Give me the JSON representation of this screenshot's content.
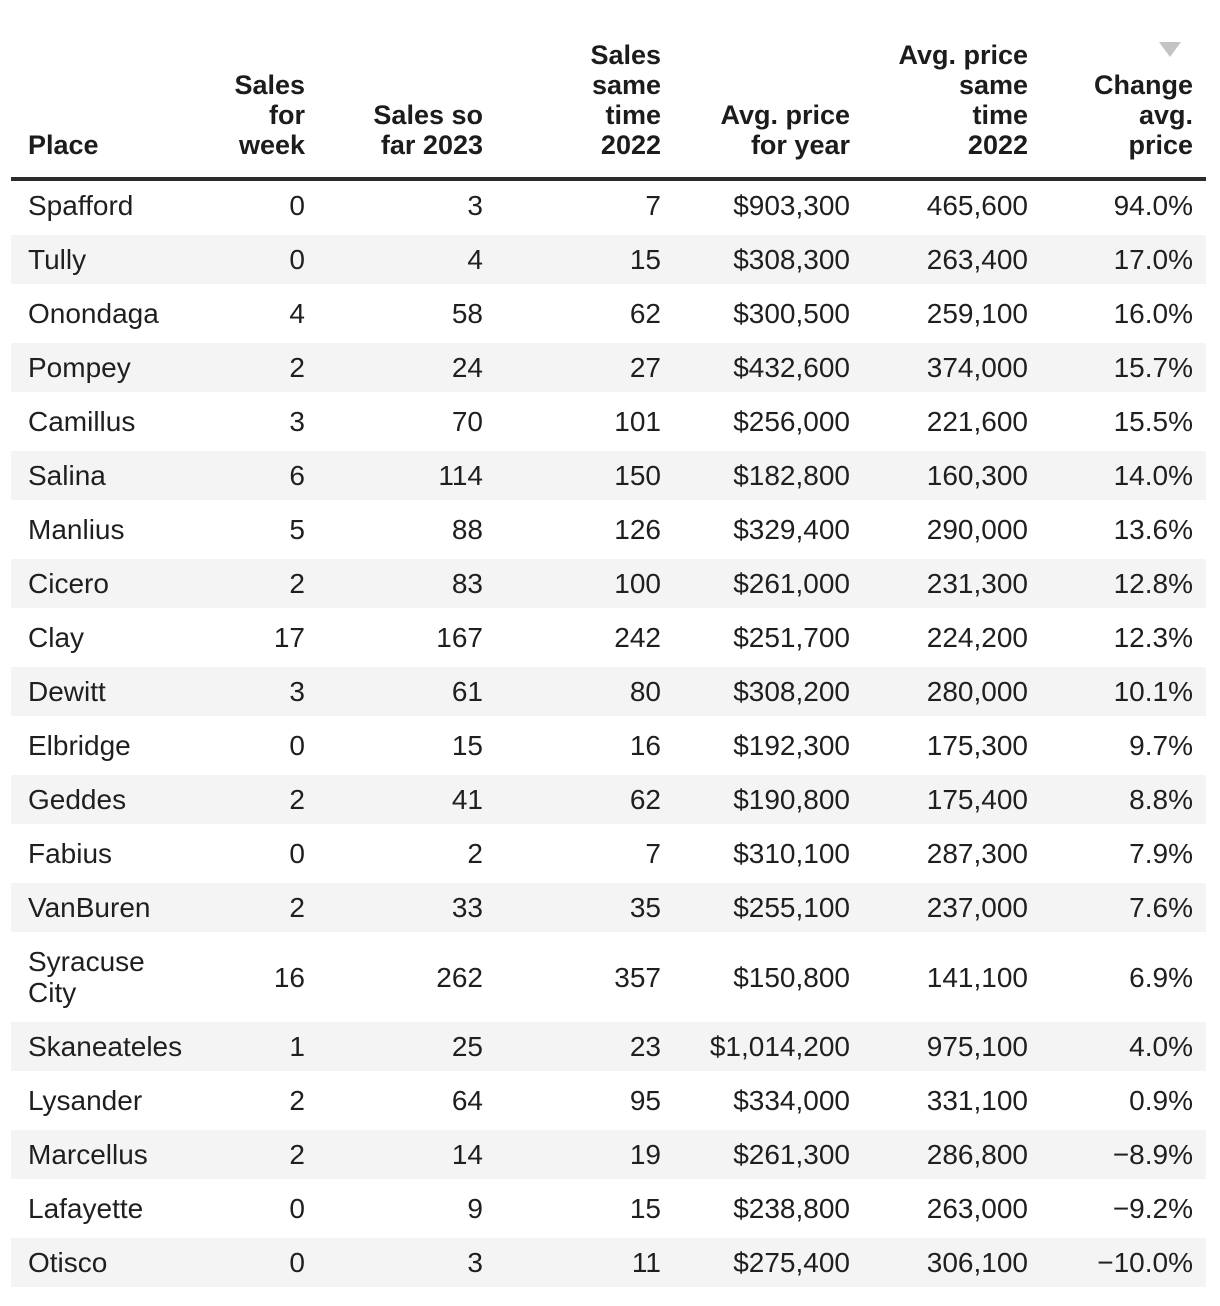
{
  "chart_data": {
    "type": "table",
    "sort": {
      "column": "Change avg. price",
      "direction": "desc"
    },
    "columns": [
      {
        "label": "Place",
        "header_lines": [
          "Place"
        ],
        "align": "left"
      },
      {
        "label": "Sales for week",
        "header_lines": [
          "Sales",
          "for",
          "week"
        ],
        "align": "right"
      },
      {
        "label": "Sales so far 2023",
        "header_lines": [
          "Sales so",
          "far 2023"
        ],
        "align": "right"
      },
      {
        "label": "Sales same time 2022",
        "header_lines": [
          "Sales",
          "same",
          "time",
          "2022"
        ],
        "align": "right"
      },
      {
        "label": "Avg. price for year",
        "header_lines": [
          "Avg. price",
          "for year"
        ],
        "align": "right"
      },
      {
        "label": "Avg. price same time 2022",
        "header_lines": [
          "Avg. price",
          "same",
          "time",
          "2022"
        ],
        "align": "right"
      },
      {
        "label": "Change avg. price",
        "header_lines": [
          "Change",
          "avg.",
          "price"
        ],
        "align": "right",
        "sort_indicator": "desc"
      }
    ],
    "rows": [
      {
        "place": "Spafford",
        "sales_for_week": 0,
        "sales_so_far_2023": 3,
        "sales_same_time_2022": 7,
        "avg_price_for_year": "$903,300",
        "avg_price_same_time_2022": "465,600",
        "change_avg_price": "94.0%"
      },
      {
        "place": "Tully",
        "sales_for_week": 0,
        "sales_so_far_2023": 4,
        "sales_same_time_2022": 15,
        "avg_price_for_year": "$308,300",
        "avg_price_same_time_2022": "263,400",
        "change_avg_price": "17.0%"
      },
      {
        "place": "Onondaga",
        "sales_for_week": 4,
        "sales_so_far_2023": 58,
        "sales_same_time_2022": 62,
        "avg_price_for_year": "$300,500",
        "avg_price_same_time_2022": "259,100",
        "change_avg_price": "16.0%"
      },
      {
        "place": "Pompey",
        "sales_for_week": 2,
        "sales_so_far_2023": 24,
        "sales_same_time_2022": 27,
        "avg_price_for_year": "$432,600",
        "avg_price_same_time_2022": "374,000",
        "change_avg_price": "15.7%"
      },
      {
        "place": "Camillus",
        "sales_for_week": 3,
        "sales_so_far_2023": 70,
        "sales_same_time_2022": 101,
        "avg_price_for_year": "$256,000",
        "avg_price_same_time_2022": "221,600",
        "change_avg_price": "15.5%"
      },
      {
        "place": "Salina",
        "sales_for_week": 6,
        "sales_so_far_2023": 114,
        "sales_same_time_2022": 150,
        "avg_price_for_year": "$182,800",
        "avg_price_same_time_2022": "160,300",
        "change_avg_price": "14.0%"
      },
      {
        "place": "Manlius",
        "sales_for_week": 5,
        "sales_so_far_2023": 88,
        "sales_same_time_2022": 126,
        "avg_price_for_year": "$329,400",
        "avg_price_same_time_2022": "290,000",
        "change_avg_price": "13.6%"
      },
      {
        "place": "Cicero",
        "sales_for_week": 2,
        "sales_so_far_2023": 83,
        "sales_same_time_2022": 100,
        "avg_price_for_year": "$261,000",
        "avg_price_same_time_2022": "231,300",
        "change_avg_price": "12.8%"
      },
      {
        "place": "Clay",
        "sales_for_week": 17,
        "sales_so_far_2023": 167,
        "sales_same_time_2022": 242,
        "avg_price_for_year": "$251,700",
        "avg_price_same_time_2022": "224,200",
        "change_avg_price": "12.3%"
      },
      {
        "place": "Dewitt",
        "sales_for_week": 3,
        "sales_so_far_2023": 61,
        "sales_same_time_2022": 80,
        "avg_price_for_year": "$308,200",
        "avg_price_same_time_2022": "280,000",
        "change_avg_price": "10.1%"
      },
      {
        "place": "Elbridge",
        "sales_for_week": 0,
        "sales_so_far_2023": 15,
        "sales_same_time_2022": 16,
        "avg_price_for_year": "$192,300",
        "avg_price_same_time_2022": "175,300",
        "change_avg_price": "9.7%"
      },
      {
        "place": "Geddes",
        "sales_for_week": 2,
        "sales_so_far_2023": 41,
        "sales_same_time_2022": 62,
        "avg_price_for_year": "$190,800",
        "avg_price_same_time_2022": "175,400",
        "change_avg_price": "8.8%"
      },
      {
        "place": "Fabius",
        "sales_for_week": 0,
        "sales_so_far_2023": 2,
        "sales_same_time_2022": 7,
        "avg_price_for_year": "$310,100",
        "avg_price_same_time_2022": "287,300",
        "change_avg_price": "7.9%"
      },
      {
        "place": "VanBuren",
        "sales_for_week": 2,
        "sales_so_far_2023": 33,
        "sales_same_time_2022": 35,
        "avg_price_for_year": "$255,100",
        "avg_price_same_time_2022": "237,000",
        "change_avg_price": "7.6%"
      },
      {
        "place": "Syracuse City",
        "sales_for_week": 16,
        "sales_so_far_2023": 262,
        "sales_same_time_2022": 357,
        "avg_price_for_year": "$150,800",
        "avg_price_same_time_2022": "141,100",
        "change_avg_price": "6.9%"
      },
      {
        "place": "Skaneateles",
        "sales_for_week": 1,
        "sales_so_far_2023": 25,
        "sales_same_time_2022": 23,
        "avg_price_for_year": "$1,014,200",
        "avg_price_same_time_2022": "975,100",
        "change_avg_price": "4.0%"
      },
      {
        "place": "Lysander",
        "sales_for_week": 2,
        "sales_so_far_2023": 64,
        "sales_same_time_2022": 95,
        "avg_price_for_year": "$334,000",
        "avg_price_same_time_2022": "331,100",
        "change_avg_price": "0.9%"
      },
      {
        "place": "Marcellus",
        "sales_for_week": 2,
        "sales_so_far_2023": 14,
        "sales_same_time_2022": 19,
        "avg_price_for_year": "$261,300",
        "avg_price_same_time_2022": "286,800",
        "change_avg_price": "−8.9%"
      },
      {
        "place": "Lafayette",
        "sales_for_week": 0,
        "sales_so_far_2023": 9,
        "sales_same_time_2022": 15,
        "avg_price_for_year": "$238,800",
        "avg_price_same_time_2022": "263,000",
        "change_avg_price": "−9.2%"
      },
      {
        "place": "Otisco",
        "sales_for_week": 0,
        "sales_so_far_2023": 3,
        "sales_same_time_2022": 11,
        "avg_price_for_year": "$275,400",
        "avg_price_same_time_2022": "306,100",
        "change_avg_price": "−10.0%"
      }
    ]
  },
  "colors": {
    "row_stripe": "#f4f4f4",
    "header_rule": "#2b2b2b",
    "text": "#1f1f1f",
    "sort_arrow": "#c4c4c4"
  },
  "icons": {
    "sort_desc": "sort-descending-triangle"
  }
}
